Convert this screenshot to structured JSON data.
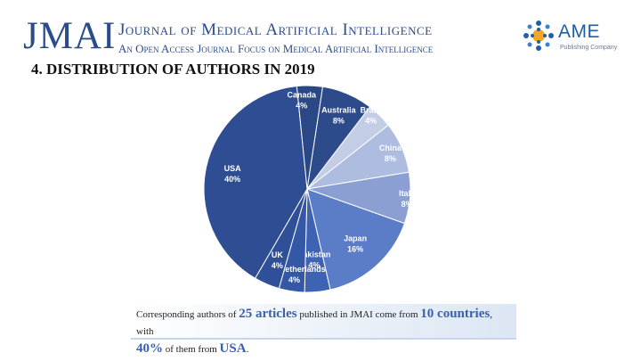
{
  "header": {
    "logo": "JMAI",
    "journal_title": "Journal of Medical Artificial Intelligence",
    "journal_subtitle": "An Open Access Journal Focus on Medical Artificial Intelligence",
    "publisher_logo": "AME",
    "publisher_sub": "Publishing Company"
  },
  "section_title": "4. DISTRIBUTION OF AUTHORS IN 2019",
  "chart_data": {
    "type": "pie",
    "slices": [
      {
        "label": "Australia",
        "value": 8,
        "display": "8%",
        "color": "#2d4a8a"
      },
      {
        "label": "Brazil",
        "value": 4,
        "display": "4%",
        "color": "#c3cde6"
      },
      {
        "label": "China",
        "value": 8,
        "display": "8%",
        "color": "#aebcdf"
      },
      {
        "label": "Italy",
        "value": 8,
        "display": "8%",
        "color": "#8b9fd3"
      },
      {
        "label": "Japan",
        "value": 16,
        "display": "16%",
        "color": "#5b7cc6"
      },
      {
        "label": "Pakistan",
        "value": 4,
        "display": "4%",
        "color": "#3f63b4"
      },
      {
        "label": "The Netherlands",
        "value": 4,
        "display": "4%",
        "color": "#3558a6"
      },
      {
        "label": "UK",
        "value": 4,
        "display": "4%",
        "color": "#2f4f99"
      },
      {
        "label": "USA",
        "value": 40,
        "display": "40%",
        "color": "#2e4d92"
      },
      {
        "label": "Canada",
        "value": 4,
        "display": "4%",
        "color": "#2a4786"
      }
    ]
  },
  "note": {
    "t1": "Corresponding authors of ",
    "h1": "25 articles",
    "t2": " published in JMAI come from ",
    "h2": "10 countries",
    "t3": ", with",
    "h3": "40%",
    "t4": " of them from ",
    "h4": "USA",
    "t5": "."
  }
}
